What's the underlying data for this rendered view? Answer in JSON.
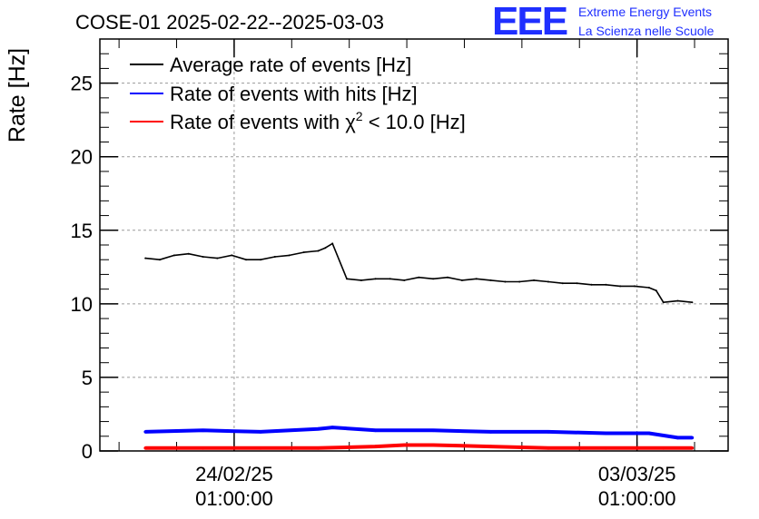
{
  "chart_data": {
    "type": "line",
    "title": "COSE-01 2025-02-22--2025-03-03",
    "ylabel": "Rate [Hz]",
    "xlabel": "",
    "ylim": [
      0,
      28
    ],
    "yticks": [
      0,
      5,
      10,
      15,
      20,
      25
    ],
    "xrange": [
      "2025-02-21 17:00",
      "2025-03-04 15:00"
    ],
    "xticks": [
      {
        "value": "2025-02-24 01:00",
        "date": "24/02/25",
        "time": "01:00:00"
      },
      {
        "value": "2025-03-03 01:00",
        "date": "03/03/25",
        "time": "01:00:00"
      }
    ],
    "grid": true,
    "legend_position": "top-left",
    "series": [
      {
        "name": "Average rate of events [Hz]",
        "color": "#000000",
        "x": [
          "2025-02-22 12:00",
          "2025-02-22 18:00",
          "2025-02-23 00:00",
          "2025-02-23 06:00",
          "2025-02-23 12:00",
          "2025-02-23 18:00",
          "2025-02-24 00:00",
          "2025-02-24 06:00",
          "2025-02-24 12:00",
          "2025-02-24 18:00",
          "2025-02-25 00:00",
          "2025-02-25 06:00",
          "2025-02-25 12:00",
          "2025-02-25 15:00",
          "2025-02-25 18:00",
          "2025-02-26 00:00",
          "2025-02-26 06:00",
          "2025-02-26 12:00",
          "2025-02-26 18:00",
          "2025-02-27 00:00",
          "2025-02-27 06:00",
          "2025-02-27 12:00",
          "2025-02-27 18:00",
          "2025-02-28 00:00",
          "2025-02-28 06:00",
          "2025-02-28 12:00",
          "2025-02-28 18:00",
          "2025-03-01 00:00",
          "2025-03-01 06:00",
          "2025-03-01 12:00",
          "2025-03-01 18:00",
          "2025-03-02 00:00",
          "2025-03-02 06:00",
          "2025-03-02 12:00",
          "2025-03-02 18:00",
          "2025-03-03 00:00",
          "2025-03-03 06:00",
          "2025-03-03 09:00",
          "2025-03-03 12:00",
          "2025-03-03 18:00",
          "2025-03-04 00:00"
        ],
        "values": [
          13.1,
          13.0,
          13.3,
          13.4,
          13.2,
          13.1,
          13.3,
          13.0,
          13.0,
          13.2,
          13.3,
          13.5,
          13.6,
          13.8,
          14.1,
          11.7,
          11.6,
          11.7,
          11.7,
          11.6,
          11.8,
          11.7,
          11.8,
          11.6,
          11.7,
          11.6,
          11.5,
          11.5,
          11.6,
          11.5,
          11.4,
          11.4,
          11.3,
          11.3,
          11.2,
          11.2,
          11.1,
          10.9,
          10.1,
          10.2,
          10.1
        ]
      },
      {
        "name": "Rate of events with hits [Hz]",
        "color": "#0000ff",
        "x": [
          "2025-02-22 12:00",
          "2025-02-23 12:00",
          "2025-02-24 12:00",
          "2025-02-25 12:00",
          "2025-02-25 18:00",
          "2025-02-26 12:00",
          "2025-02-27 12:00",
          "2025-02-28 12:00",
          "2025-03-01 12:00",
          "2025-03-02 12:00",
          "2025-03-03 06:00",
          "2025-03-03 18:00",
          "2025-03-04 00:00"
        ],
        "values": [
          1.3,
          1.4,
          1.3,
          1.5,
          1.6,
          1.4,
          1.4,
          1.3,
          1.3,
          1.2,
          1.2,
          0.9,
          0.9
        ]
      },
      {
        "name": "Rate of events with χ2 < 10.0 [Hz]",
        "color": "#ff0000",
        "x": [
          "2025-02-22 12:00",
          "2025-02-23 12:00",
          "2025-02-24 12:00",
          "2025-02-25 12:00",
          "2025-02-26 12:00",
          "2025-02-27 00:00",
          "2025-02-27 12:00",
          "2025-02-28 12:00",
          "2025-03-01 12:00",
          "2025-03-02 12:00",
          "2025-03-03 12:00",
          "2025-03-04 00:00"
        ],
        "values": [
          0.2,
          0.2,
          0.2,
          0.2,
          0.3,
          0.4,
          0.4,
          0.3,
          0.2,
          0.2,
          0.2,
          0.2
        ]
      }
    ]
  },
  "legend": {
    "items": [
      {
        "text": "Average rate of events [Hz]"
      },
      {
        "text": "Rate of events with hits [Hz]"
      },
      {
        "prefix": "Rate of events with ",
        "chi": "χ",
        "sup": "2",
        "suffix": " < 10.0 [Hz]"
      }
    ]
  },
  "logo": {
    "letters": "EEE",
    "line1": "Extreme Energy Events",
    "line2": "La Scienza nelle Scuole"
  }
}
